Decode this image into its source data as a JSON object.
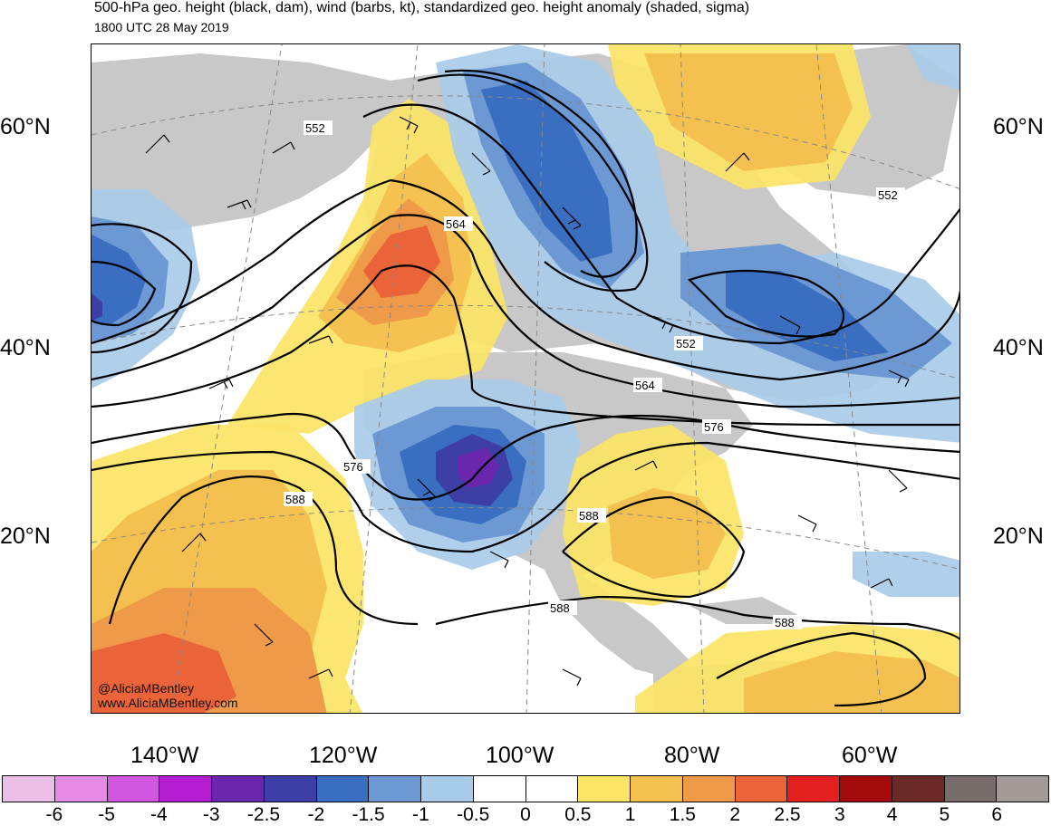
{
  "header": {
    "title": "500-hPa geo. height (black, dam), wind (barbs, kt), standardized geo. height anomaly (shaded, sigma)",
    "subtitle": "1800 UTC 28 May 2019"
  },
  "map": {
    "lat_labels": [
      "60°N",
      "40°N",
      "20°N"
    ],
    "lon_labels": [
      "140°W",
      "120°W",
      "100°W",
      "80°W",
      "60°W"
    ],
    "contour_labels": [
      "552",
      "564",
      "552",
      "552",
      "564",
      "576",
      "576",
      "588",
      "588",
      "588",
      "588"
    ],
    "credits": [
      "@AliciaMBentley",
      "www.AliciaMBentley.com"
    ]
  },
  "colorbar": {
    "colors": [
      "#ecbfe9",
      "#e48ae4",
      "#d156e0",
      "#b51ed0",
      "#6b26ae",
      "#3d3fa7",
      "#3a6ec0",
      "#6c98d4",
      "#a8cbe9",
      "#ffffff",
      "#ffffff",
      "#fbe466",
      "#f4c04f",
      "#ee9a49",
      "#ea6339",
      "#e3201f",
      "#a30a0c",
      "#6b2a25",
      "#786d6a",
      "#a39a98"
    ],
    "ticks": [
      "-6",
      "-5",
      "-4",
      "-3",
      "-2.5",
      "-2",
      "-1.5",
      "-1",
      "-0.5",
      "0",
      "0.5",
      "1",
      "1.5",
      "2",
      "2.5",
      "3",
      "4",
      "5",
      "6"
    ]
  },
  "colors": {
    "land": "#c8c8c8",
    "contour": "#000000",
    "pos1": "#fbe466",
    "pos2": "#f4c04f",
    "pos3": "#ee9a49",
    "pos4": "#ea6339",
    "neg1": "#a8cbe9",
    "neg2": "#6c98d4",
    "neg3": "#3a6ec0",
    "neg4": "#3d3fa7",
    "neg5": "#6b26ae"
  }
}
